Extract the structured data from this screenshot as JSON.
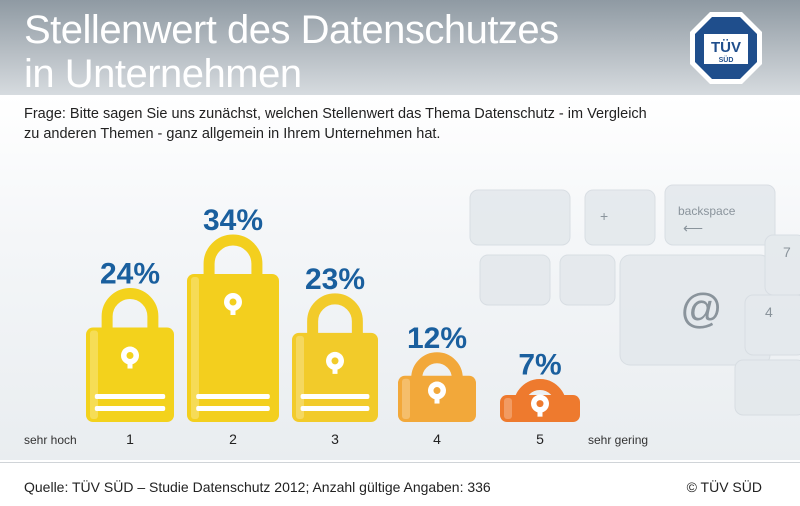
{
  "header": {
    "title_line1": "Stellenwert des Datenschutzes",
    "title_line2": "in Unternehmen",
    "logo_text_top": "TÜV",
    "logo_text_bottom": "SÜD"
  },
  "question": "Frage: Bitte sagen Sie uns zunächst, welchen Stellenwert das Thema Datenschutz - im Vergleich zu anderen Themen - ganz allgemein in Ihrem Unternehmen hat.",
  "keyboard": {
    "key_backspace": "backspace",
    "key_at": "@",
    "key_7": "7",
    "key_4": "4",
    "key_plus": "+"
  },
  "chart_data": {
    "type": "bar",
    "title": "Stellenwert des Datenschutzes in Unternehmen",
    "categories": [
      "1",
      "2",
      "3",
      "4",
      "5"
    ],
    "values": [
      24,
      34,
      23,
      12,
      7
    ],
    "value_labels": [
      "24%",
      "34%",
      "23%",
      "12%",
      "7%"
    ],
    "xlabel_left": "sehr hoch",
    "xlabel_right": "sehr gering",
    "unit": "%",
    "ylim": [
      0,
      34
    ],
    "colors": [
      "#f3d21c",
      "#f3cf1e",
      "#f2cb2a",
      "#f2a83a",
      "#ee7a2e"
    ],
    "label_color": "#1a5f9e"
  },
  "footer": {
    "source": "Quelle: TÜV SÜD – Studie Datenschutz 2012; Anzahl gültige Angaben: 336",
    "copyright": "© TÜV SÜD"
  }
}
